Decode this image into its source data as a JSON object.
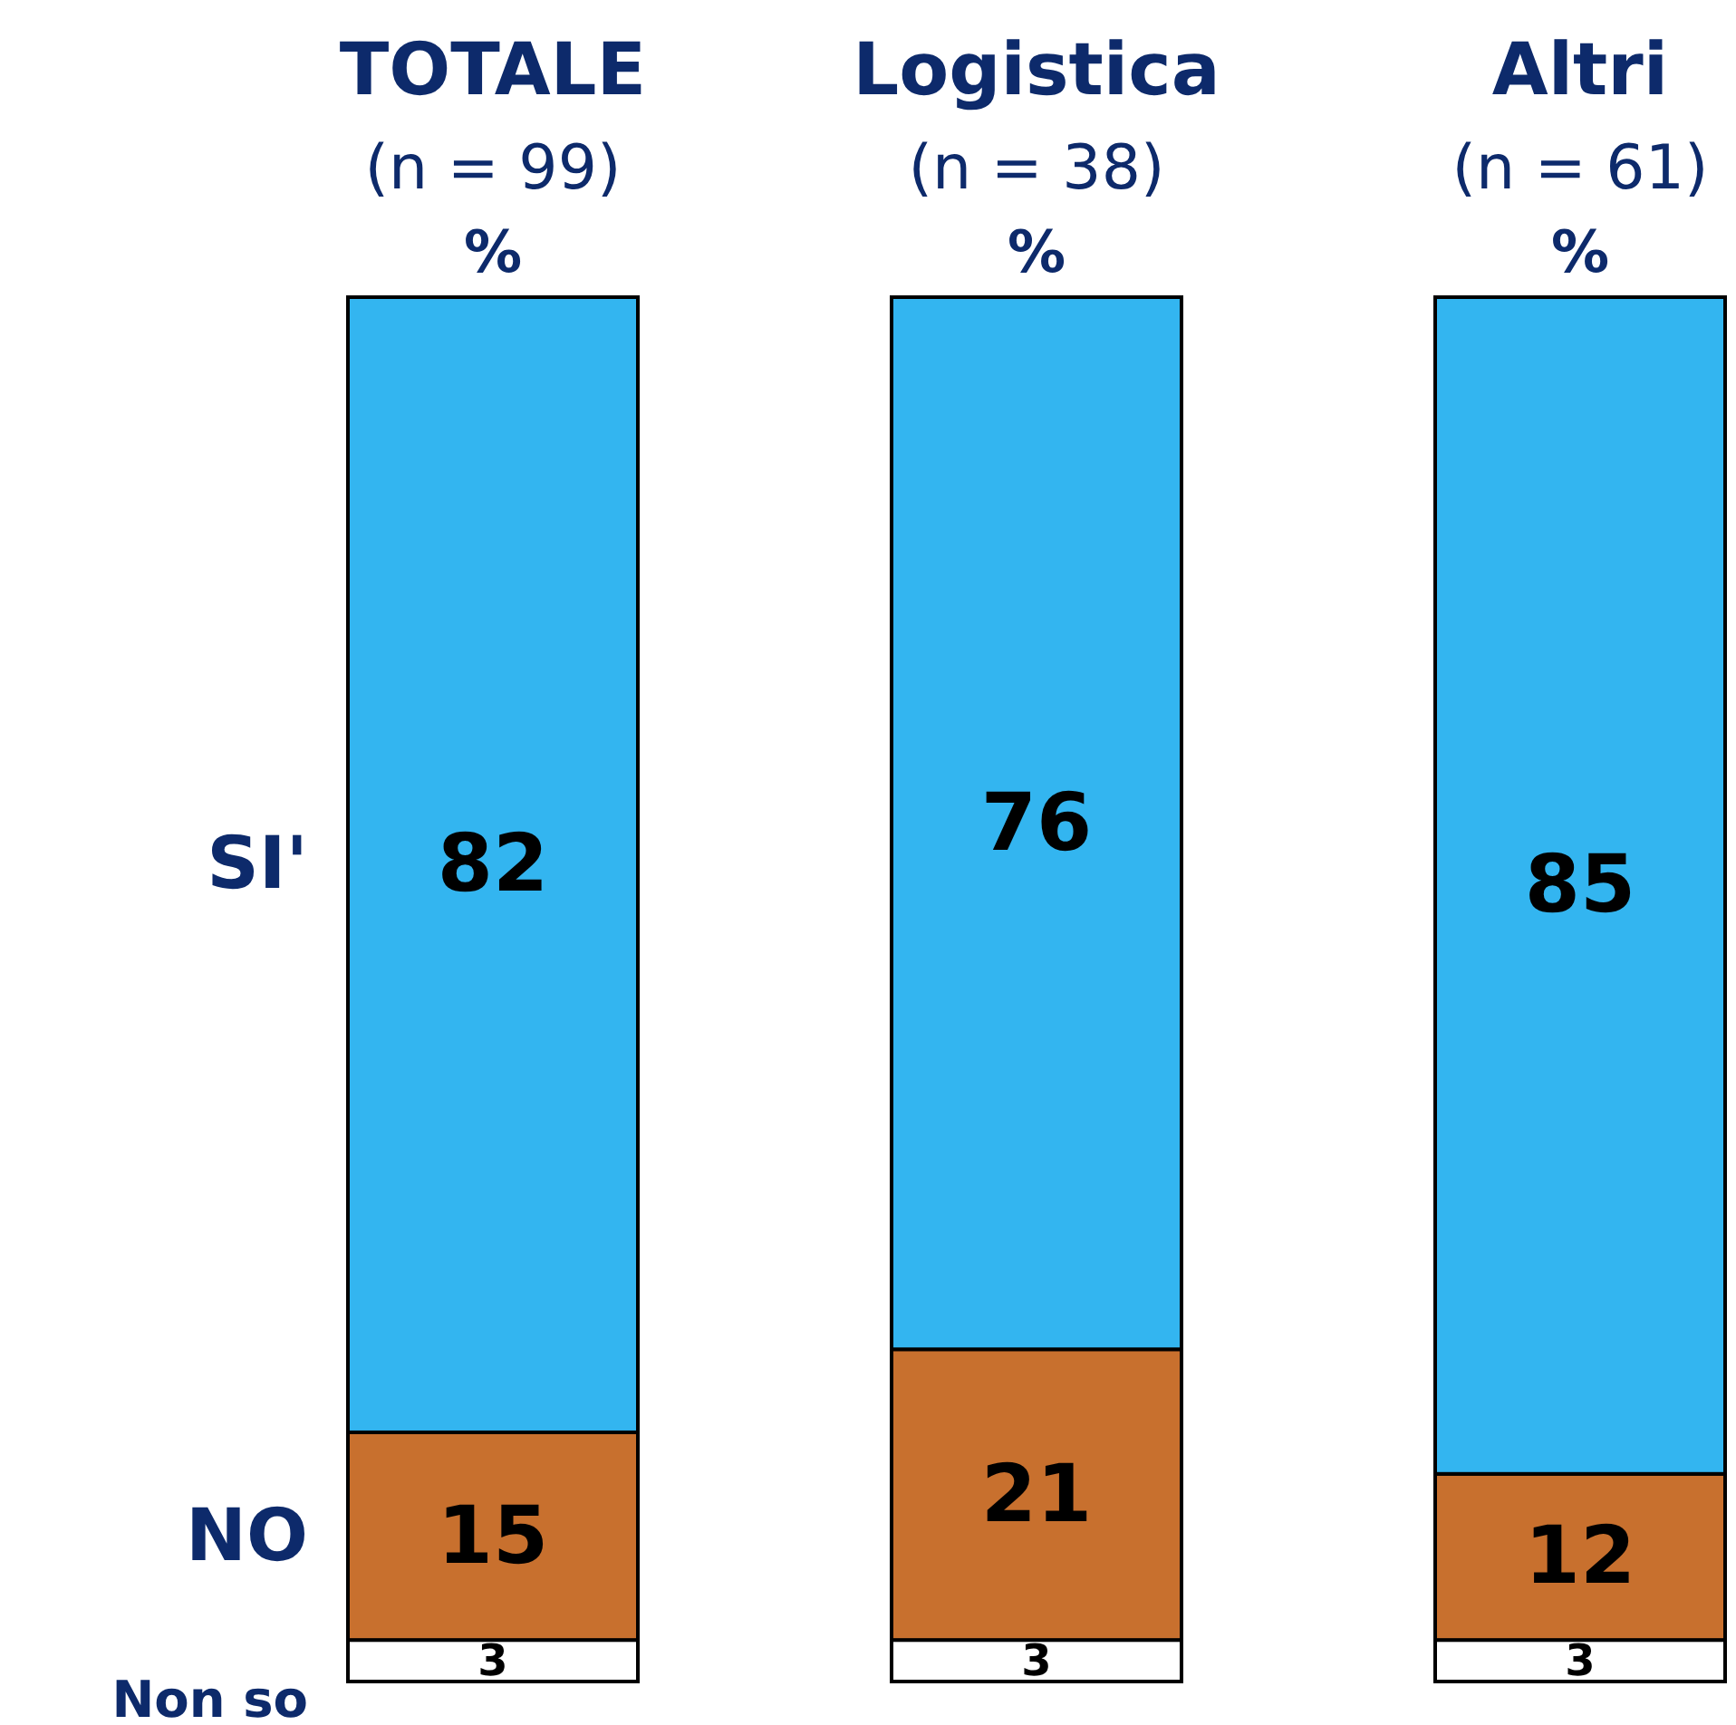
{
  "chart_data": {
    "type": "bar",
    "stacked": true,
    "data_labels": true,
    "categories": [
      "TOTALE",
      "Logistica",
      "Altri"
    ],
    "series": [
      {
        "name": "Non so",
        "color": "#ffffff",
        "values": [
          3,
          3,
          3
        ]
      },
      {
        "name": "NO",
        "color": "#c8702e",
        "values": [
          15,
          21,
          12
        ]
      },
      {
        "name": "SI'",
        "color": "#33b5f0",
        "values": [
          82,
          76,
          85
        ]
      }
    ],
    "annotations": [
      "(n = 99)",
      "%",
      "(n = 38)",
      "%",
      "(n = 61)",
      "%"
    ]
  }
}
